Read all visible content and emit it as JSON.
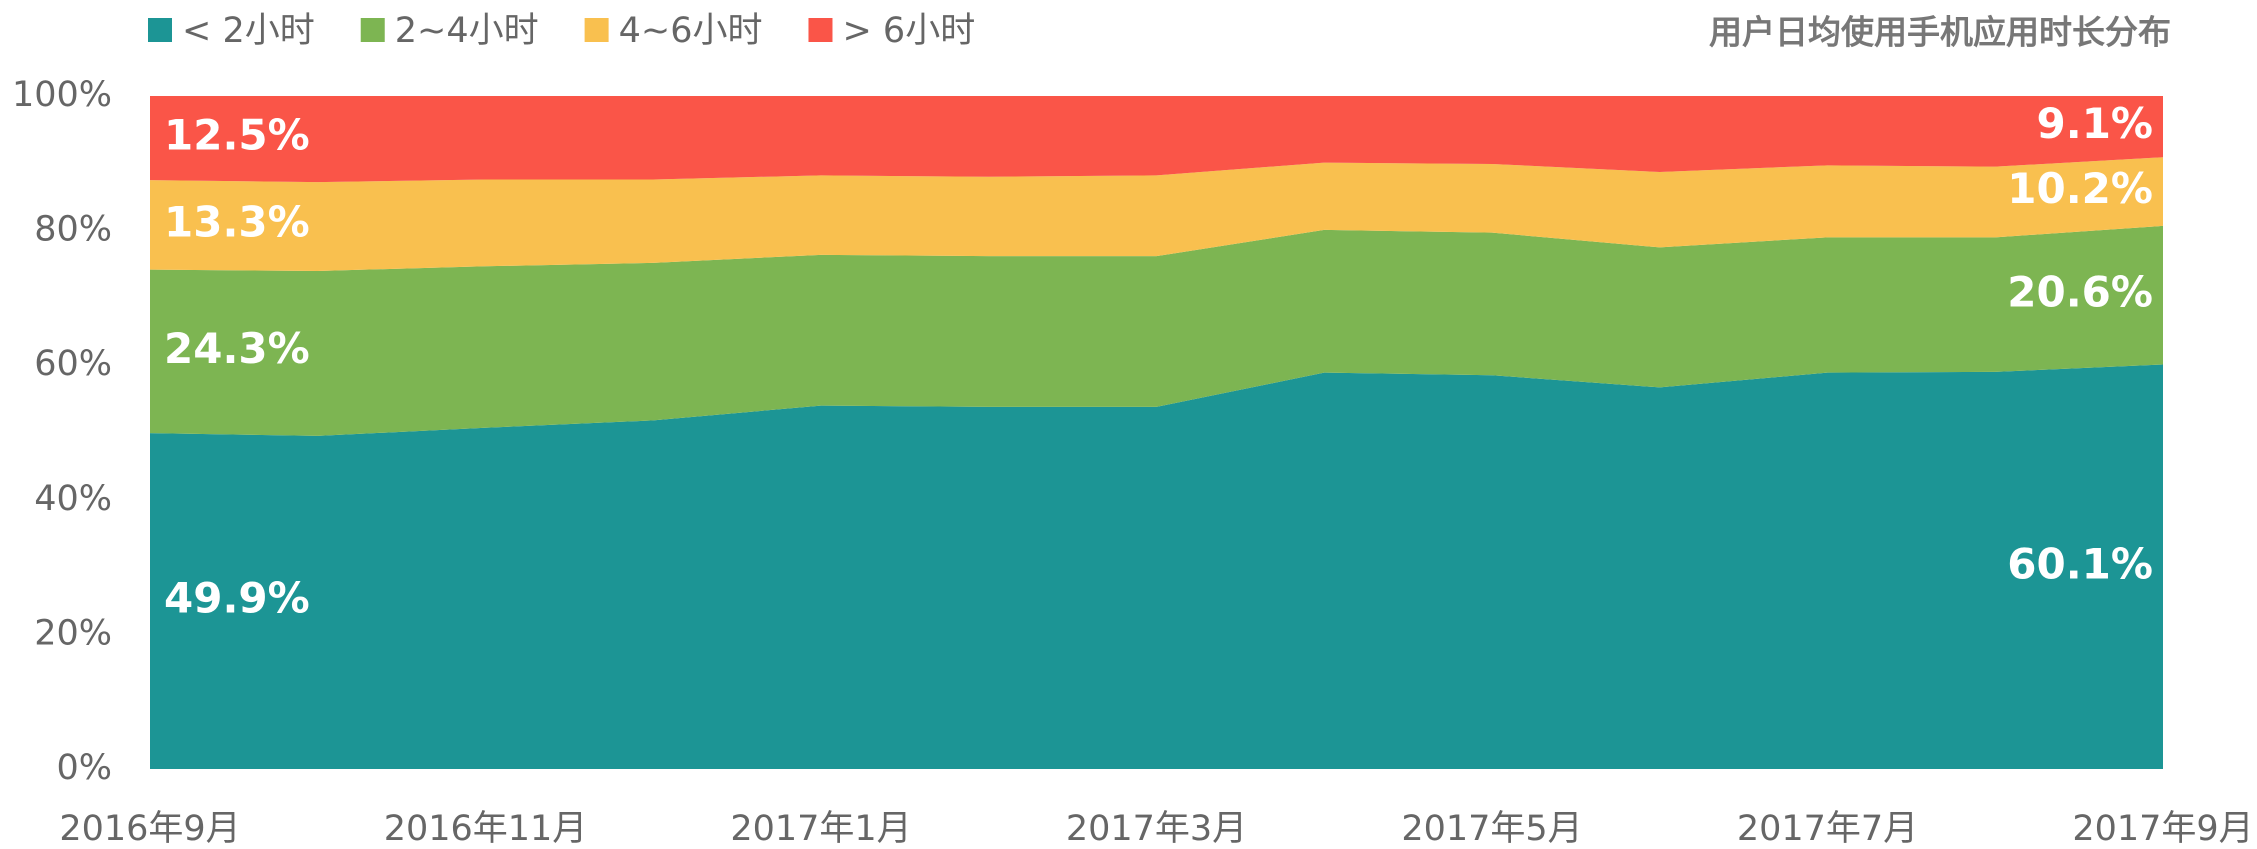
{
  "chart_data": {
    "type": "stacked_area",
    "title": "用户日均使用手机应用时长分布",
    "categories": [
      "2016年9月",
      null,
      "2016年11月",
      null,
      "2017年1月",
      null,
      "2017年3月",
      null,
      "2017年5月",
      null,
      "2017年7月",
      null,
      "2017年9月"
    ],
    "series": [
      {
        "name": "< 2小时",
        "color": "#1c9595",
        "values": [
          49.9,
          49.5,
          50.7,
          51.8,
          54.0,
          53.8,
          53.8,
          58.9,
          58.5,
          56.7,
          58.9,
          59.0,
          60.1
        ],
        "value_labels": [
          "49.9%",
          null,
          null,
          null,
          null,
          null,
          null,
          null,
          null,
          null,
          null,
          null,
          "60.1%"
        ]
      },
      {
        "name": "2~4小时",
        "color": "#7db552",
        "values": [
          24.3,
          24.5,
          24.0,
          23.4,
          22.4,
          22.4,
          22.4,
          21.2,
          21.2,
          20.8,
          20.1,
          20.0,
          20.6
        ],
        "value_labels": [
          "24.3%",
          null,
          null,
          null,
          null,
          null,
          null,
          null,
          null,
          null,
          null,
          null,
          "20.6%"
        ]
      },
      {
        "name": "4~6小时",
        "color": "#f9c04f",
        "values": [
          13.3,
          13.2,
          12.9,
          12.4,
          11.8,
          11.8,
          12.0,
          10.0,
          10.2,
          11.2,
          10.7,
          10.5,
          10.2
        ],
        "value_labels": [
          "13.3%",
          null,
          null,
          null,
          null,
          null,
          null,
          null,
          null,
          null,
          null,
          null,
          "10.2%"
        ]
      },
      {
        "name": "> 6小时",
        "color": "#fa5548",
        "values": [
          12.5,
          12.8,
          12.4,
          12.4,
          11.8,
          12.0,
          11.8,
          9.9,
          10.1,
          11.3,
          10.3,
          10.5,
          9.1
        ],
        "value_labels": [
          "12.5%",
          null,
          null,
          null,
          null,
          null,
          null,
          null,
          null,
          null,
          null,
          null,
          "9.1%"
        ]
      }
    ],
    "ylim": [
      0,
      100
    ],
    "yticks": [
      {
        "value": 0,
        "label": "0%"
      },
      {
        "value": 20,
        "label": "20%"
      },
      {
        "value": 40,
        "label": "40%"
      },
      {
        "value": 60,
        "label": "60%"
      },
      {
        "value": 80,
        "label": "80%"
      },
      {
        "value": 100,
        "label": "100%"
      }
    ],
    "grid": false,
    "legend": "top-left"
  }
}
